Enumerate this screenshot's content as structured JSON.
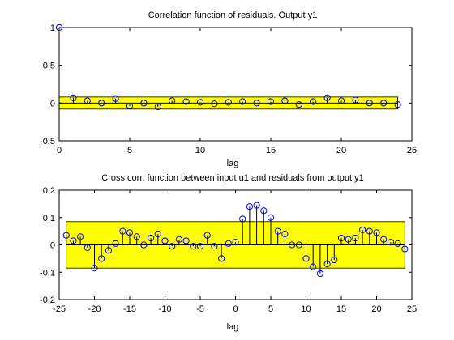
{
  "chart_data": [
    {
      "type": "stem",
      "title": "Correlation function of residuals. Output y1",
      "xlabel": "lag",
      "ylabel": "",
      "xlim": [
        0,
        25
      ],
      "ylim": [
        -0.5,
        1
      ],
      "xticks": [
        0,
        5,
        10,
        15,
        20,
        25
      ],
      "yticks": [
        -0.5,
        0,
        0.5,
        1
      ],
      "xtick_labels": [
        "0",
        "5",
        "10",
        "15",
        "20",
        "25"
      ],
      "ytick_labels": [
        "-0.5",
        "0",
        "0.5",
        "1"
      ],
      "confidence_band": [
        -0.08,
        0.08
      ],
      "x": [
        0,
        1,
        2,
        3,
        4,
        5,
        6,
        7,
        8,
        9,
        10,
        11,
        12,
        13,
        14,
        15,
        16,
        17,
        18,
        19,
        20,
        21,
        22,
        23,
        24
      ],
      "values": [
        1.0,
        0.07,
        0.03,
        0.0,
        0.06,
        -0.04,
        0.0,
        -0.05,
        0.03,
        0.02,
        0.01,
        -0.01,
        0.01,
        0.02,
        0.0,
        0.02,
        0.03,
        -0.02,
        0.02,
        0.07,
        0.03,
        0.04,
        0.0,
        0.0,
        -0.02
      ],
      "grid": false,
      "colors": {
        "band": "#ffff00",
        "stem": "#0000ff",
        "axes": "#000000"
      }
    },
    {
      "type": "stem",
      "title": "Cross corr. function between input u1 and residuals from output y1",
      "xlabel": "lag",
      "ylabel": "",
      "xlim": [
        -25,
        25
      ],
      "ylim": [
        -0.2,
        0.2
      ],
      "xticks": [
        -25,
        -20,
        -15,
        -10,
        -5,
        0,
        5,
        10,
        15,
        20,
        25
      ],
      "yticks": [
        -0.2,
        -0.1,
        0,
        0.1,
        0.2
      ],
      "xtick_labels": [
        "-25",
        "-20",
        "-15",
        "-10",
        "-5",
        "0",
        "5",
        "10",
        "15",
        "20",
        "25"
      ],
      "ytick_labels": [
        "-0.2",
        "-0.1",
        "0",
        "0.1",
        "0.2"
      ],
      "confidence_band": [
        -0.085,
        0.085
      ],
      "x": [
        -24,
        -23,
        -22,
        -21,
        -20,
        -19,
        -18,
        -17,
        -16,
        -15,
        -14,
        -13,
        -12,
        -11,
        -10,
        -9,
        -8,
        -7,
        -6,
        -5,
        -4,
        -3,
        -2,
        -1,
        0,
        1,
        2,
        3,
        4,
        5,
        6,
        7,
        8,
        9,
        10,
        11,
        12,
        13,
        14,
        15,
        16,
        17,
        18,
        19,
        20,
        21,
        22,
        23,
        24
      ],
      "values": [
        0.035,
        0.015,
        0.03,
        -0.01,
        -0.085,
        -0.05,
        -0.02,
        0.005,
        0.05,
        0.045,
        0.03,
        0.0,
        0.025,
        0.04,
        0.015,
        -0.005,
        0.02,
        0.015,
        -0.005,
        -0.005,
        0.035,
        -0.005,
        -0.05,
        0.005,
        0.01,
        0.095,
        0.14,
        0.145,
        0.125,
        0.1,
        0.05,
        0.04,
        0.0,
        0.0,
        -0.05,
        -0.08,
        -0.105,
        -0.07,
        -0.055,
        0.025,
        0.02,
        0.025,
        0.055,
        0.05,
        0.045,
        0.02,
        0.01,
        0.005,
        -0.015
      ],
      "grid": false,
      "colors": {
        "band": "#ffff00",
        "stem": "#0000ff",
        "axes": "#000000"
      }
    }
  ]
}
